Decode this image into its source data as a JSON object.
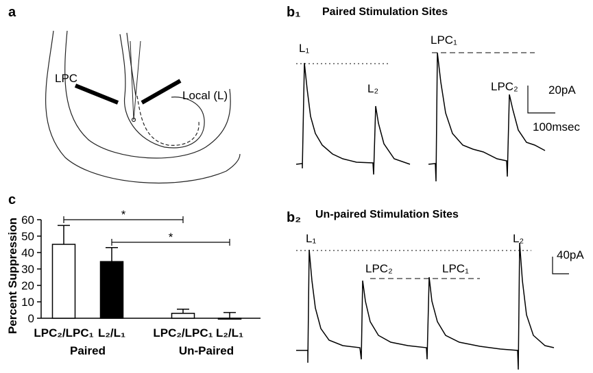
{
  "panels": {
    "a": {
      "label": "a",
      "electrode_labels": [
        "LPC",
        "Local (L)"
      ]
    },
    "b1": {
      "label": "b₁",
      "title": "Paired Stimulation Sites",
      "peak_labels": [
        "L₁",
        "L₂",
        "LPC₁",
        "LPC₂"
      ],
      "scale_labels": [
        "20pA",
        "100msec"
      ]
    },
    "b2": {
      "label": "b₂",
      "title": "Un-paired Stimulation Sites",
      "peak_labels": [
        "L₁",
        "LPC₂",
        "LPC₁",
        "L₂"
      ],
      "scale_labels": [
        "40pA"
      ]
    },
    "c": {
      "label": "c"
    }
  },
  "chart_data": {
    "type": "bar",
    "ylabel": "Percent Suppression",
    "categories": [
      "LPC₂/LPC₁",
      "L₂/L₁",
      "LPC₂/LPC₁",
      "L₂/L₁"
    ],
    "groups": [
      "Paired",
      "Un-Paired"
    ],
    "values": [
      45,
      34.5,
      3,
      -0.5
    ],
    "errors": [
      11.5,
      8.5,
      2.5,
      4
    ],
    "colors": [
      "#ffffff",
      "#000000",
      "#ffffff",
      "#000000"
    ],
    "ylim": [
      0,
      60
    ],
    "yticks": [
      0,
      10,
      20,
      30,
      40,
      50,
      60
    ],
    "annotations": [
      "*",
      "*"
    ]
  }
}
